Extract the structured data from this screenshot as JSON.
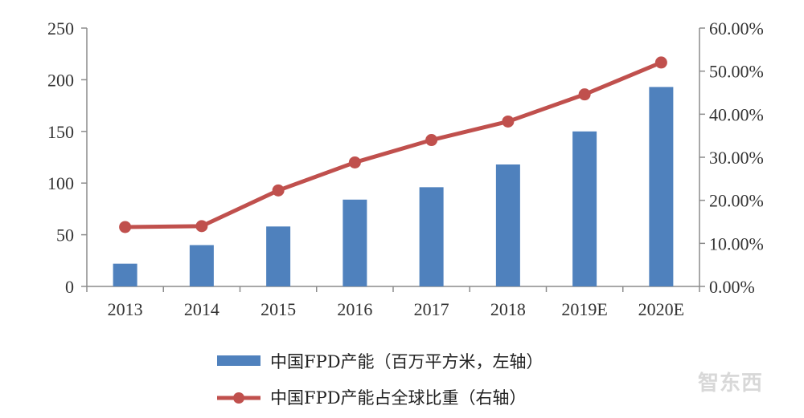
{
  "chart_data": {
    "type": "bar",
    "categories": [
      "2013",
      "2014",
      "2015",
      "2016",
      "2017",
      "2018",
      "2019E",
      "2020E"
    ],
    "series": [
      {
        "name": "中国FPD产能（百万平方米，左轴）",
        "kind": "bar",
        "axis": "left",
        "color": "#4f81bd",
        "values": [
          22,
          40,
          58,
          84,
          96,
          118,
          150,
          193
        ]
      },
      {
        "name": "中国FPD产能占全球比重（右轴）",
        "kind": "line",
        "axis": "right",
        "color": "#c0504d",
        "values": [
          0.138,
          0.14,
          0.223,
          0.288,
          0.34,
          0.383,
          0.446,
          0.52
        ]
      }
    ],
    "left_axis": {
      "min": 0,
      "max": 250,
      "ticks": [
        "0",
        "50",
        "100",
        "150",
        "200",
        "250"
      ]
    },
    "right_axis": {
      "min": 0,
      "max": 0.6,
      "ticks": [
        "0.00%",
        "10.00%",
        "20.00%",
        "30.00%",
        "40.00%",
        "50.00%",
        "60.00%"
      ]
    },
    "grid": false,
    "legend_position": "bottom"
  },
  "watermark": "智东西"
}
